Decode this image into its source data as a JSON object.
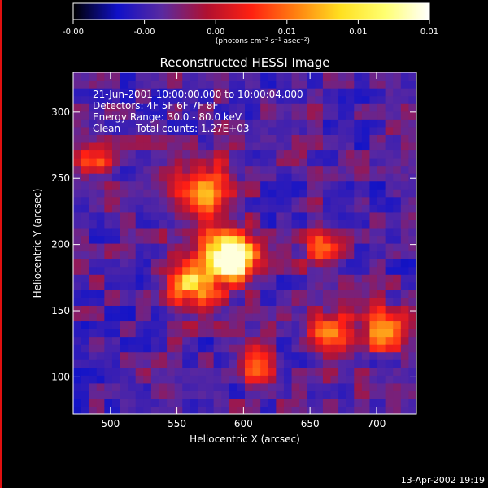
{
  "chart_data": {
    "type": "heatmap",
    "title": "Reconstructed HESSI Image",
    "xlabel": "Heliocentric X (arcsec)",
    "ylabel": "Heliocentric Y (arcsec)",
    "xlim": [
      472,
      730
    ],
    "ylim": [
      72,
      330
    ],
    "x_ticks": [
      500,
      550,
      600,
      650,
      700
    ],
    "y_ticks": [
      100,
      150,
      200,
      250,
      300
    ],
    "colorbar": {
      "tick_labels": [
        "-0.00",
        "-0.00",
        "0.00",
        "0.01",
        "0.01",
        "0.01"
      ],
      "units": "(photons cm⁻² s⁻¹ asec⁻²)",
      "colors": [
        "#000000",
        "#1010c8",
        "#5a2aa0",
        "#b01030",
        "#ff2010",
        "#ff8010",
        "#ffe020",
        "#ffff70",
        "#ffffff"
      ]
    },
    "annotation_lines": [
      "21-Jun-2001 10:00:00.000 to 10:00:04.000",
      "Detectors: 4F 5F 6F 7F 8F",
      "Energy Range: 30.0 - 80.0 keV",
      "Clean     Total counts: 1.27E+03"
    ],
    "sources": [
      {
        "x": 590,
        "y": 191,
        "radius": 18,
        "peak": 1.0
      },
      {
        "x": 570,
        "y": 240,
        "radius": 22,
        "peak": 0.55
      },
      {
        "x": 560,
        "y": 170,
        "radius": 20,
        "peak": 0.5
      },
      {
        "x": 665,
        "y": 132,
        "radius": 16,
        "peak": 0.45
      },
      {
        "x": 705,
        "y": 135,
        "radius": 18,
        "peak": 0.4
      },
      {
        "x": 490,
        "y": 263,
        "radius": 12,
        "peak": 0.4
      },
      {
        "x": 610,
        "y": 110,
        "radius": 14,
        "peak": 0.35
      },
      {
        "x": 660,
        "y": 198,
        "radius": 14,
        "peak": 0.35
      }
    ]
  },
  "footer": {
    "timestamp": "13-Apr-2002 19:19"
  }
}
